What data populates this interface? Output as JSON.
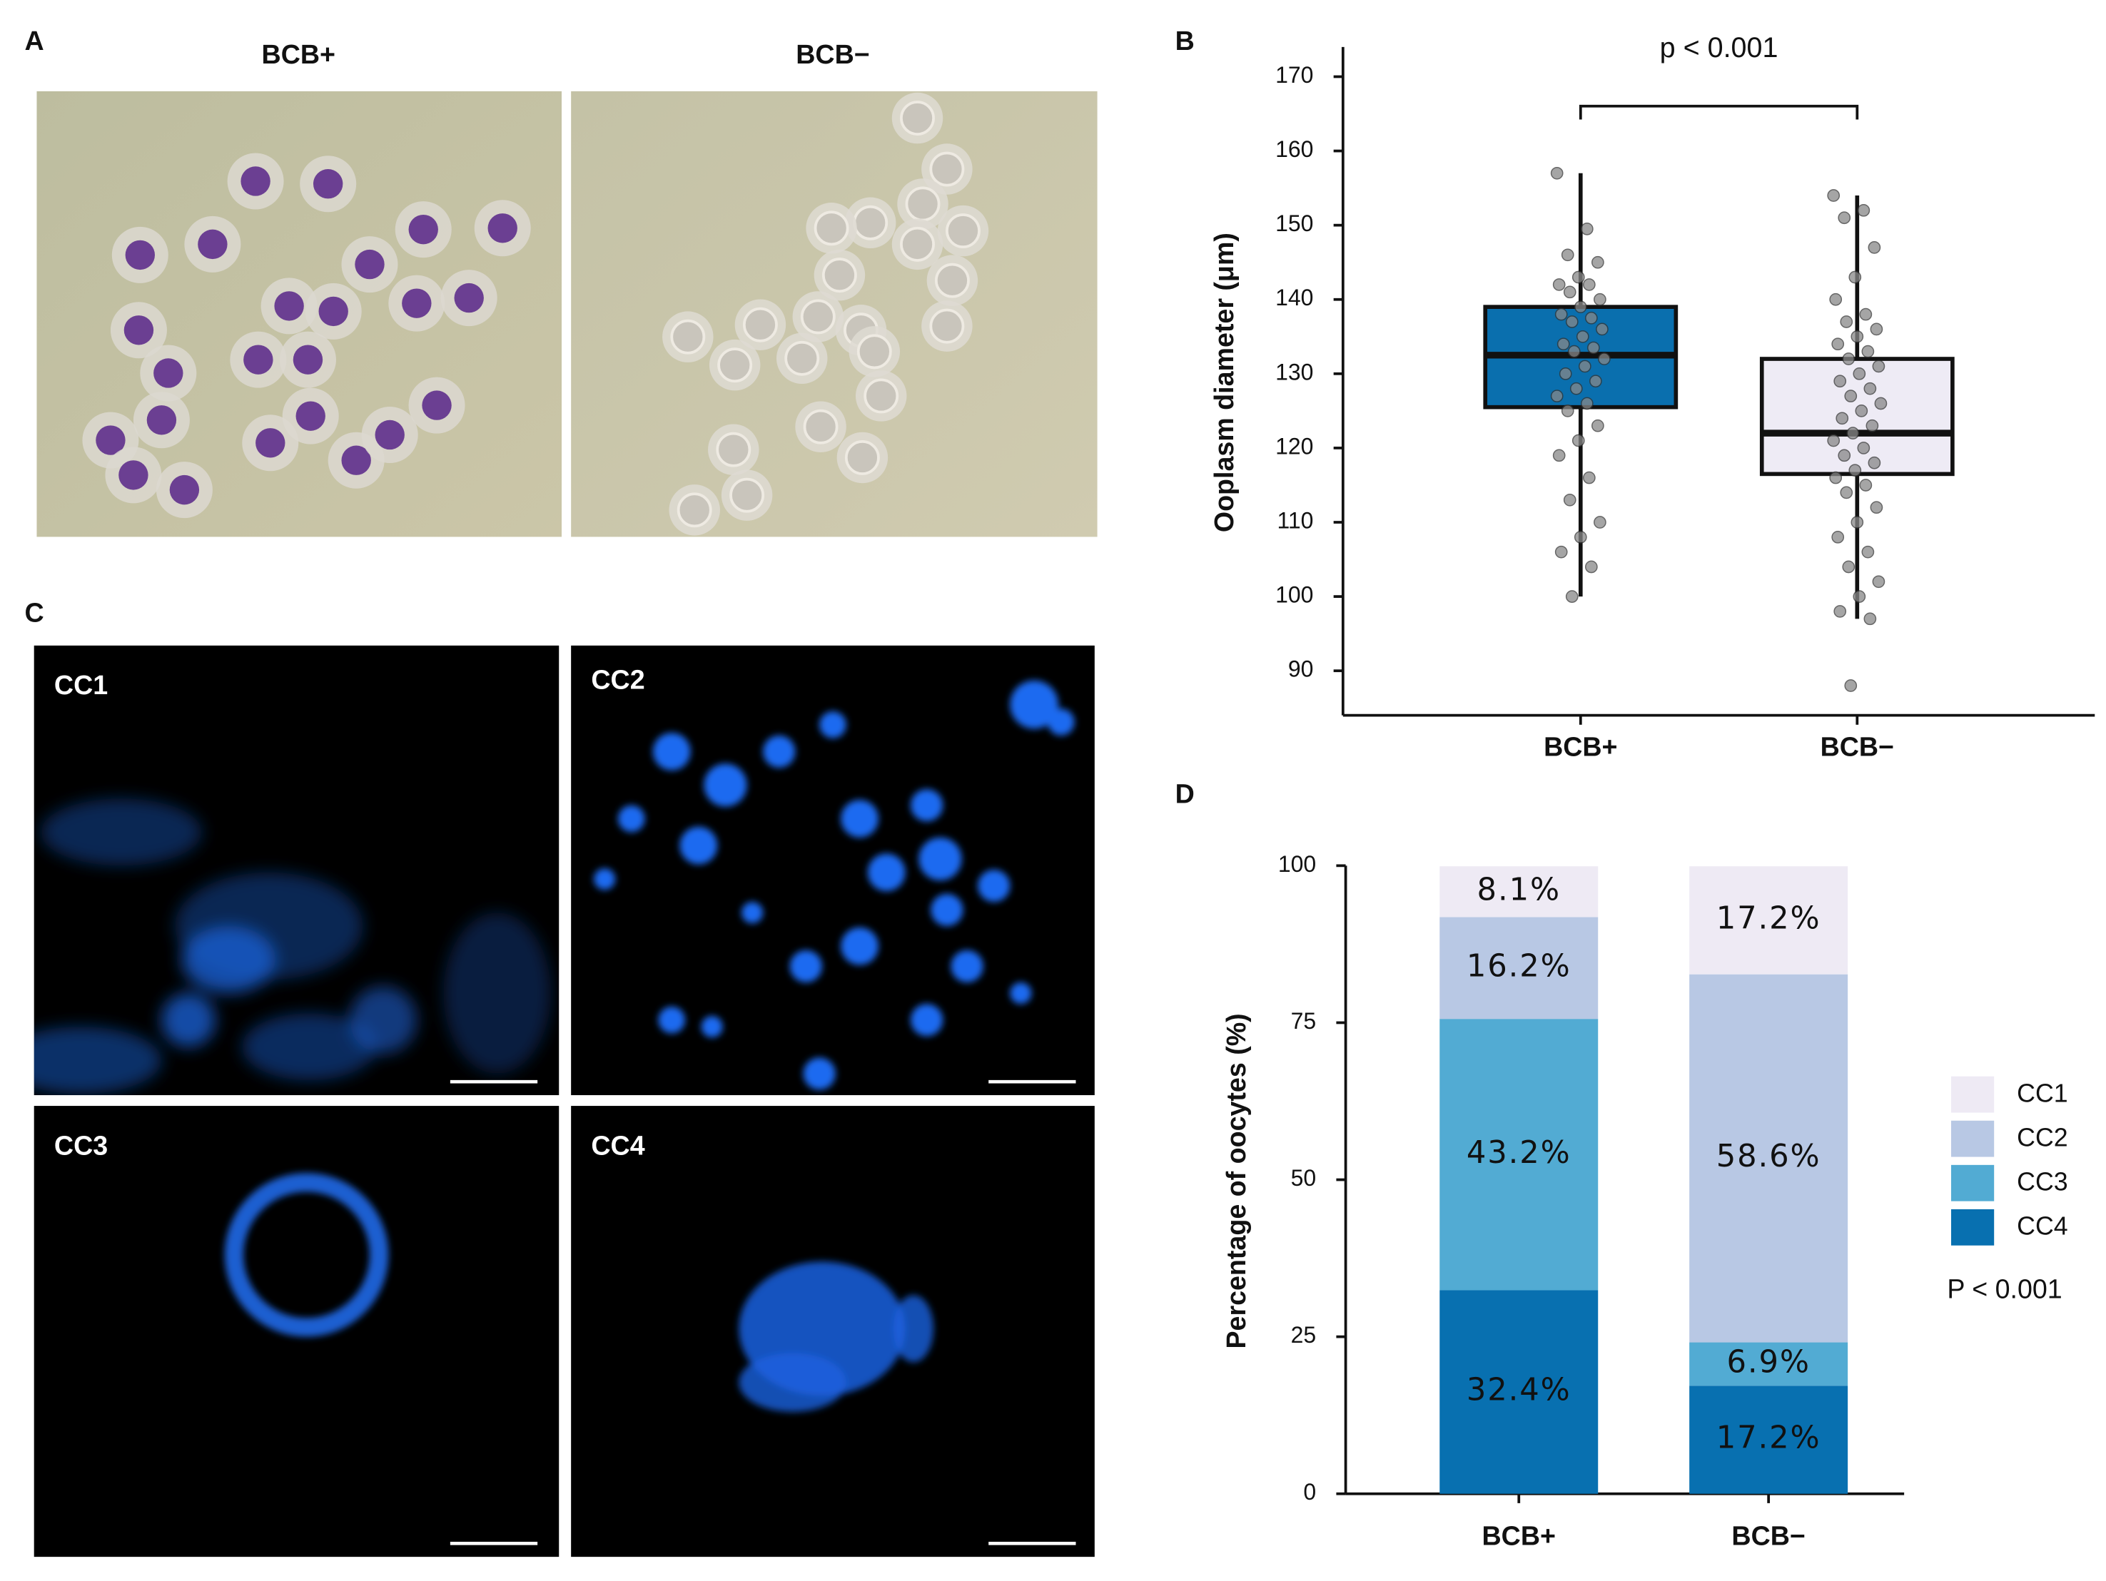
{
  "panels": {
    "A": {
      "label": "A",
      "titles": [
        "BCB+",
        "BCB−"
      ]
    },
    "C": {
      "label": "C",
      "titles": [
        "CC1",
        "CC2",
        "CC3",
        "CC4"
      ]
    }
  },
  "chart_data": [
    {
      "type": "box",
      "panel_label": "B",
      "y_label": "Ooplasm diameter (μm)",
      "categories": [
        "BCB+",
        "BCB−"
      ],
      "ylim": [
        84,
        174
      ],
      "yticks": [
        90,
        100,
        110,
        120,
        130,
        140,
        150,
        160,
        170
      ],
      "annotation": "p < 0.001",
      "boxes": [
        {
          "color": "#0a6fae",
          "min": 100,
          "q1": 125.5,
          "median": 132.5,
          "q3": 139,
          "max": 157,
          "points": [
            157,
            149.5,
            146,
            145,
            143,
            142,
            142,
            141,
            140,
            139,
            138,
            137.5,
            137,
            136,
            135,
            134,
            133.5,
            133,
            132,
            131,
            130,
            129,
            128,
            127,
            126,
            125,
            123,
            121,
            119,
            116,
            113,
            110,
            108,
            106,
            104,
            100
          ]
        },
        {
          "color": "#eeebf5",
          "min": 97,
          "q1": 116.5,
          "median": 122,
          "q3": 132,
          "max": 154,
          "points": [
            154,
            152,
            151,
            147,
            143,
            140,
            138,
            137,
            136,
            135,
            134,
            133,
            132,
            131,
            130,
            129,
            128,
            127,
            126,
            125,
            124,
            123,
            122,
            121,
            120,
            119,
            118,
            117,
            116,
            115,
            114,
            112,
            110,
            108,
            106,
            104,
            102,
            100,
            98,
            97,
            88
          ]
        }
      ]
    },
    {
      "type": "stacked_bar",
      "panel_label": "D",
      "y_label": "Percentage of oocytes (%)",
      "categories": [
        "BCB+",
        "BCB−"
      ],
      "ylim": [
        0,
        100
      ],
      "yticks": [
        0,
        25,
        50,
        75,
        100
      ],
      "legend": "right",
      "annotation": "P < 0.001",
      "series": [
        {
          "name": "CC1",
          "color": "#eeeaf4",
          "values": [
            8.1,
            17.2
          ],
          "value_labels": [
            "8.1%",
            "17.2%"
          ]
        },
        {
          "name": "CC2",
          "color": "#b8c8e4",
          "values": [
            16.2,
            58.6
          ],
          "value_labels": [
            "16.2%",
            "58.6%"
          ]
        },
        {
          "name": "CC3",
          "color": "#52abd3",
          "values": [
            43.2,
            6.9
          ],
          "value_labels": [
            "43.2%",
            "6.9%"
          ]
        },
        {
          "name": "CC4",
          "color": "#0870b0",
          "values": [
            32.4,
            17.2
          ],
          "value_labels": [
            "32.4%",
            "17.2%"
          ]
        }
      ]
    }
  ]
}
